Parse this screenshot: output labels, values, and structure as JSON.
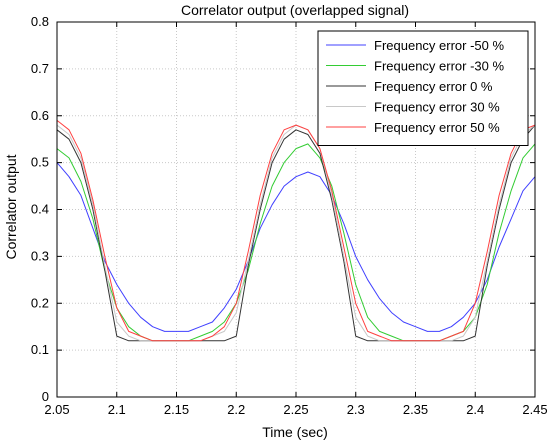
{
  "chart_data": {
    "type": "line",
    "title": "Correlator output (overlapped signal)",
    "xlabel": "Time (sec)",
    "ylabel": "Correlator output",
    "xlim": [
      2.05,
      2.45
    ],
    "ylim": [
      0,
      0.8
    ],
    "x_ticks": [
      2.05,
      2.1,
      2.15,
      2.2,
      2.25,
      2.3,
      2.35,
      2.4,
      2.45
    ],
    "x_tick_labels": [
      "2.05",
      "2.1",
      "2.15",
      "2.2",
      "2.25",
      "2.3",
      "2.35",
      "2.4",
      "2.45"
    ],
    "y_ticks": [
      0,
      0.1,
      0.2,
      0.3,
      0.4,
      0.5,
      0.6,
      0.7,
      0.8
    ],
    "y_tick_labels": [
      "0",
      "0.1",
      "0.2",
      "0.3",
      "0.4",
      "0.5",
      "0.6",
      "0.7",
      "0.8"
    ],
    "grid": true,
    "legend_position": "top-right",
    "x": [
      2.05,
      2.06,
      2.07,
      2.08,
      2.09,
      2.1,
      2.11,
      2.12,
      2.13,
      2.14,
      2.15,
      2.16,
      2.17,
      2.18,
      2.19,
      2.2,
      2.21,
      2.22,
      2.23,
      2.24,
      2.25,
      2.26,
      2.27,
      2.28,
      2.29,
      2.3,
      2.31,
      2.32,
      2.33,
      2.34,
      2.35,
      2.36,
      2.37,
      2.38,
      2.39,
      2.4,
      2.41,
      2.42,
      2.43,
      2.44,
      2.45
    ],
    "series": [
      {
        "name": "Frequency error -50 %",
        "color": "#4040ff",
        "values": [
          0.5,
          0.47,
          0.43,
          0.36,
          0.29,
          0.24,
          0.2,
          0.17,
          0.15,
          0.14,
          0.14,
          0.14,
          0.15,
          0.16,
          0.19,
          0.23,
          0.29,
          0.36,
          0.41,
          0.45,
          0.47,
          0.48,
          0.47,
          0.43,
          0.37,
          0.3,
          0.25,
          0.21,
          0.18,
          0.16,
          0.15,
          0.14,
          0.14,
          0.15,
          0.17,
          0.2,
          0.25,
          0.32,
          0.38,
          0.44,
          0.47
        ]
      },
      {
        "name": "Frequency error -30 %",
        "color": "#33cc33",
        "values": [
          0.53,
          0.51,
          0.46,
          0.38,
          0.27,
          0.19,
          0.15,
          0.13,
          0.12,
          0.12,
          0.12,
          0.12,
          0.13,
          0.14,
          0.16,
          0.2,
          0.27,
          0.37,
          0.45,
          0.5,
          0.53,
          0.54,
          0.51,
          0.45,
          0.35,
          0.24,
          0.17,
          0.14,
          0.13,
          0.12,
          0.12,
          0.12,
          0.12,
          0.13,
          0.14,
          0.17,
          0.24,
          0.35,
          0.44,
          0.51,
          0.54
        ]
      },
      {
        "name": "Frequency error 0 %",
        "color": "#333333",
        "values": [
          0.57,
          0.55,
          0.5,
          0.4,
          0.27,
          0.13,
          0.12,
          0.12,
          0.12,
          0.12,
          0.12,
          0.12,
          0.12,
          0.12,
          0.12,
          0.13,
          0.28,
          0.4,
          0.5,
          0.55,
          0.57,
          0.56,
          0.52,
          0.42,
          0.29,
          0.13,
          0.12,
          0.12,
          0.12,
          0.12,
          0.12,
          0.12,
          0.12,
          0.12,
          0.12,
          0.13,
          0.28,
          0.4,
          0.5,
          0.55,
          0.58
        ]
      },
      {
        "name": "Frequency error 30 %",
        "color": "#c8c8c8",
        "values": [
          0.58,
          0.56,
          0.51,
          0.41,
          0.28,
          0.16,
          0.13,
          0.12,
          0.12,
          0.12,
          0.12,
          0.12,
          0.12,
          0.13,
          0.14,
          0.18,
          0.29,
          0.41,
          0.51,
          0.56,
          0.58,
          0.57,
          0.53,
          0.43,
          0.3,
          0.17,
          0.13,
          0.12,
          0.12,
          0.12,
          0.12,
          0.12,
          0.12,
          0.12,
          0.13,
          0.17,
          0.29,
          0.41,
          0.51,
          0.56,
          0.58
        ]
      },
      {
        "name": "Frequency error 50 %",
        "color": "#ff4040",
        "values": [
          0.59,
          0.57,
          0.52,
          0.42,
          0.3,
          0.19,
          0.14,
          0.13,
          0.12,
          0.12,
          0.12,
          0.12,
          0.12,
          0.13,
          0.15,
          0.2,
          0.31,
          0.43,
          0.52,
          0.57,
          0.58,
          0.57,
          0.53,
          0.44,
          0.32,
          0.2,
          0.14,
          0.13,
          0.12,
          0.12,
          0.12,
          0.12,
          0.12,
          0.13,
          0.14,
          0.2,
          0.31,
          0.43,
          0.52,
          0.57,
          0.58
        ]
      }
    ]
  }
}
